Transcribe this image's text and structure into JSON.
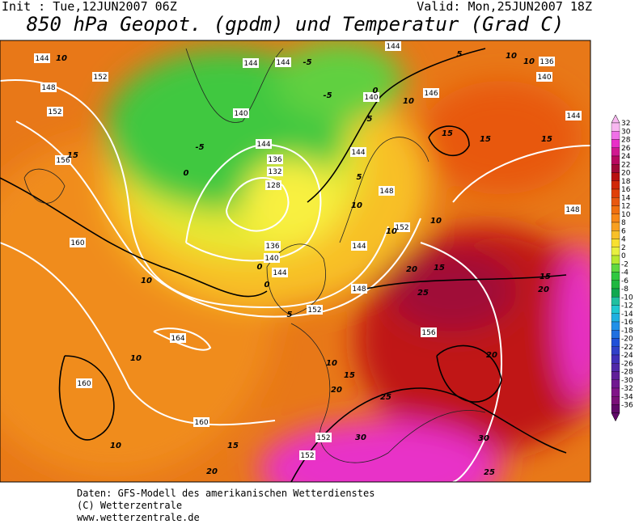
{
  "header": {
    "init": "Init : Tue,12JUN2007 06Z",
    "valid": "Valid: Mon,25JUN2007 18Z",
    "title": "850 hPa Geopot. (gpdm) und Temperatur (Grad C)"
  },
  "colorbar": {
    "labels": [
      32,
      30,
      28,
      26,
      24,
      22,
      20,
      18,
      16,
      14,
      12,
      10,
      8,
      6,
      4,
      2,
      0,
      -2,
      -4,
      -6,
      -8,
      -10,
      -12,
      -14,
      -16,
      -18,
      -20,
      -22,
      -24,
      -26,
      -28,
      -30,
      -32,
      -34,
      -36
    ],
    "colors": [
      "#f8b8f0",
      "#f070e8",
      "#e830c8",
      "#d01890",
      "#b80860",
      "#a00838",
      "#b81010",
      "#d02808",
      "#e04008",
      "#e85810",
      "#f07010",
      "#f88818",
      "#f8a020",
      "#f8c028",
      "#f8e030",
      "#e8f040",
      "#b8e830",
      "#60d840",
      "#30c840",
      "#20b840",
      "#10a850",
      "#20c0a0",
      "#20c8d0",
      "#20b0e0",
      "#2090e8",
      "#2070e0",
      "#2050d8",
      "#3040c8",
      "#4030b8",
      "#5028a8",
      "#602098",
      "#701890",
      "#801488",
      "#7a1078",
      "#600868"
    ]
  },
  "geopotential_labels": [
    144,
    148,
    152,
    152,
    156,
    160,
    164,
    160,
    160,
    144,
    144,
    140,
    144,
    136,
    132,
    128,
    136,
    140,
    144,
    148,
    152,
    156,
    152,
    152,
    144,
    148,
    144,
    152,
    140,
    146,
    144,
    136,
    140,
    144,
    148
  ],
  "temperature_labels": [
    10,
    -5,
    -5,
    0,
    5,
    10,
    5,
    10,
    10,
    15,
    15,
    15,
    15,
    -5,
    0,
    5,
    10,
    10,
    10,
    15,
    20,
    25,
    20,
    15,
    10,
    0,
    0,
    5,
    10,
    10,
    15,
    20,
    20,
    25,
    30,
    10,
    15,
    20,
    25,
    30
  ],
  "footer": [
    "Daten: GFS-Modell des amerikanischen Wetterdienstes",
    "(C) Wetterzentrale",
    "www.wetterzentrale.de"
  ]
}
